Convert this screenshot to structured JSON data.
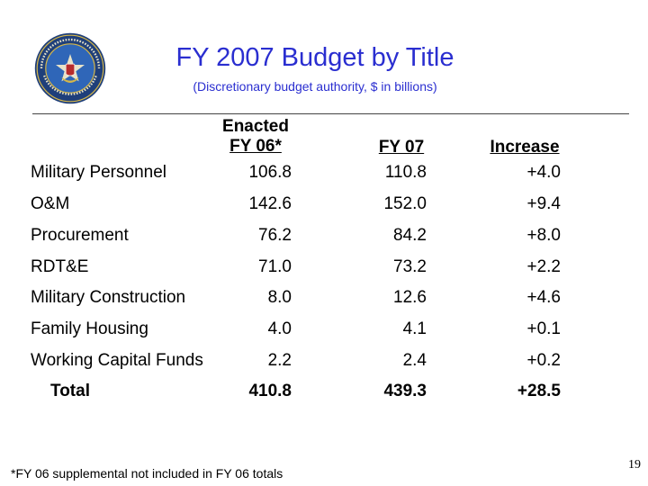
{
  "slide": {
    "title": "FY 2007 Budget by Title",
    "subtitle": "(Discretionary budget authority, $ in billions)",
    "footnote": "*FY 06 supplemental not included in FY 06 totals",
    "page_number": "19",
    "seal_icon": "department-of-defense-seal"
  },
  "table": {
    "headers": {
      "col1_line1": "Enacted",
      "col1_line2": "FY 06*",
      "col2": "FY 07",
      "col3": "Increase"
    },
    "rows": [
      {
        "label": "Military Personnel",
        "fy06": "106.8",
        "fy07": "110.8",
        "increase": "+4.0"
      },
      {
        "label": "O&M",
        "fy06": "142.6",
        "fy07": "152.0",
        "increase": "+9.4"
      },
      {
        "label": "Procurement",
        "fy06": "76.2",
        "fy07": "84.2",
        "increase": "+8.0"
      },
      {
        "label": "RDT&E",
        "fy06": "71.0",
        "fy07": "73.2",
        "increase": "+2.2"
      },
      {
        "label": "Military Construction",
        "fy06": "8.0",
        "fy07": "12.6",
        "increase": "+4.6"
      },
      {
        "label": "Family Housing",
        "fy06": "4.0",
        "fy07": "4.1",
        "increase": "+0.1"
      },
      {
        "label": "Working Capital Funds",
        "fy06": "2.2",
        "fy07": "2.4",
        "increase": "+0.2"
      }
    ],
    "total": {
      "label": "Total",
      "fy06": "410.8",
      "fy07": "439.3",
      "increase": "+28.5"
    }
  },
  "colors": {
    "title": "#2a2ed0"
  }
}
